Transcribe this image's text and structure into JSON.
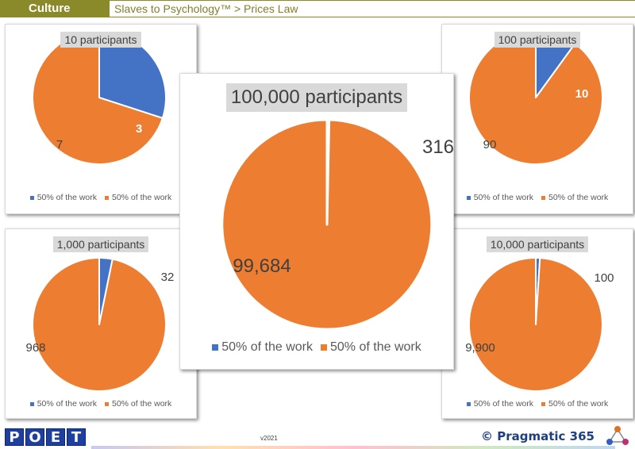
{
  "header": {
    "section": "Culture",
    "breadcrumb": "Slaves to Psychology™ > Prices Law"
  },
  "colors": {
    "blue": "#4472c4",
    "orange": "#ed7d31"
  },
  "legend_label": "50% of the work",
  "chart_data": [
    {
      "type": "pie",
      "title": "10 participants",
      "values": [
        3,
        7
      ],
      "labels": [
        "3",
        "7"
      ],
      "legend": [
        "50% of the work",
        "50% of the work"
      ]
    },
    {
      "type": "pie",
      "title": "100 participants",
      "values": [
        10,
        90
      ],
      "labels": [
        "10",
        "90"
      ],
      "legend": [
        "50% of the work",
        "50% of the work"
      ]
    },
    {
      "type": "pie",
      "title": "1,000 participants",
      "values": [
        32,
        968
      ],
      "labels": [
        "32",
        "968"
      ],
      "legend": [
        "50% of the work",
        "50% of the work"
      ]
    },
    {
      "type": "pie",
      "title": "10,000 participants",
      "values": [
        100,
        9900
      ],
      "labels": [
        "100",
        "9,900"
      ],
      "legend": [
        "50% of the work",
        "50% of the work"
      ]
    },
    {
      "type": "pie",
      "title": "100,000 participants",
      "values": [
        316,
        99684
      ],
      "labels": [
        "316",
        "99,684"
      ],
      "legend": [
        "50% of the work",
        "50% of the work"
      ]
    }
  ],
  "footer": {
    "logo_letters": [
      "P",
      "O",
      "E",
      "T"
    ],
    "version": "v2021",
    "brand": "© Pragmatic 365"
  }
}
